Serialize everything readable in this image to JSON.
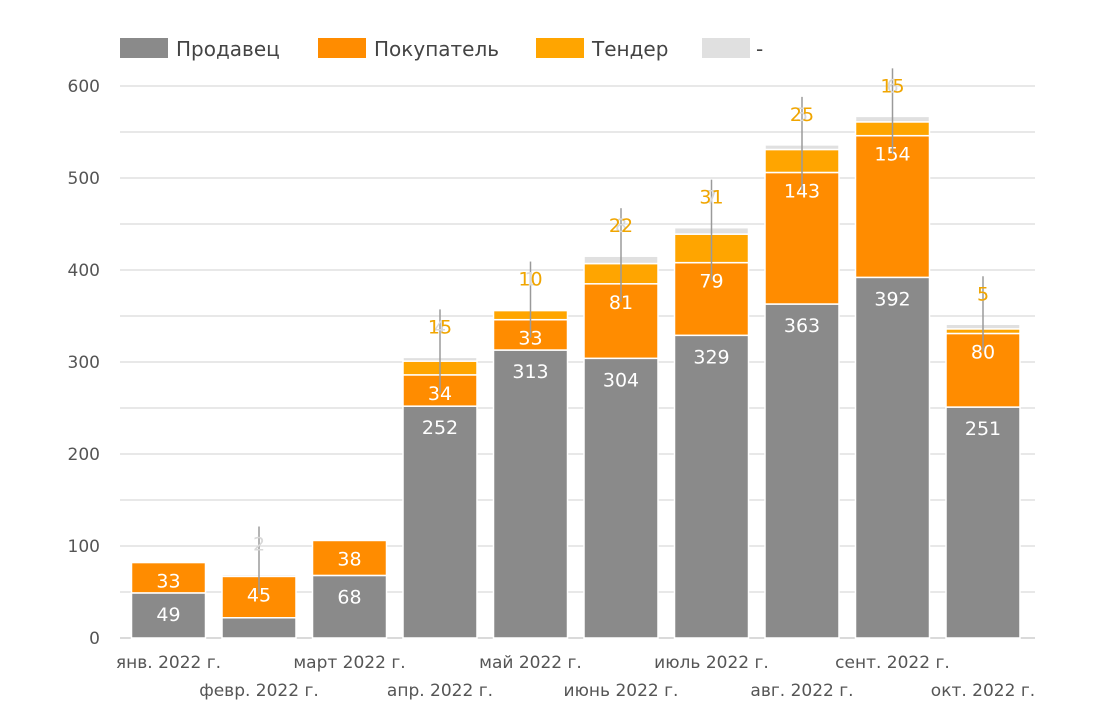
{
  "colors": {
    "seller": "#8a8a8a",
    "buyer": "#ff8c00",
    "tender": "#ffa500",
    "dash": "#e0e0e0",
    "grid": "#d0d0d0"
  },
  "chart_data": {
    "type": "bar",
    "stacked": true,
    "title": "",
    "xlabel": "",
    "ylabel": "",
    "ylim": [
      0,
      600
    ],
    "yticks": [
      0,
      100,
      200,
      300,
      400,
      500,
      600
    ],
    "grid": true,
    "legend_position": "top",
    "categories": [
      "янв. 2022 г.",
      "февр. 2022 г.",
      "март 2022 г.",
      "апр. 2022 г.",
      "май 2022 г.",
      "июнь 2022 г.",
      "июль 2022 г.",
      "авг. 2022 г.",
      "сент. 2022 г.",
      "окт. 2022 г."
    ],
    "series": [
      {
        "name": "Продавец",
        "values": [
          49,
          22,
          68,
          252,
          313,
          304,
          329,
          363,
          392,
          251
        ]
      },
      {
        "name": "Покупатель",
        "values": [
          33,
          45,
          38,
          34,
          33,
          81,
          79,
          143,
          154,
          80
        ]
      },
      {
        "name": "Тендер",
        "values": [
          0,
          0,
          0,
          15,
          10,
          22,
          31,
          25,
          15,
          5
        ]
      },
      {
        "name": "-",
        "values": [
          0,
          2,
          0,
          4,
          1,
          8,
          7,
          5,
          6,
          5
        ]
      }
    ],
    "data_labels": {
      "seller": [
        "49",
        "",
        "68",
        "252",
        "313",
        "304",
        "329",
        "363",
        "392",
        "251"
      ],
      "buyer": [
        "33",
        "45",
        "38",
        "34",
        "33",
        "81",
        "79",
        "143",
        "154",
        "80"
      ],
      "tender": [
        "",
        "",
        "",
        "15",
        "10",
        "22",
        "31",
        "25",
        "15",
        "5"
      ],
      "dash": [
        "",
        "2",
        "",
        "4",
        "1",
        "8",
        "7",
        "5",
        "6",
        "5"
      ]
    }
  }
}
